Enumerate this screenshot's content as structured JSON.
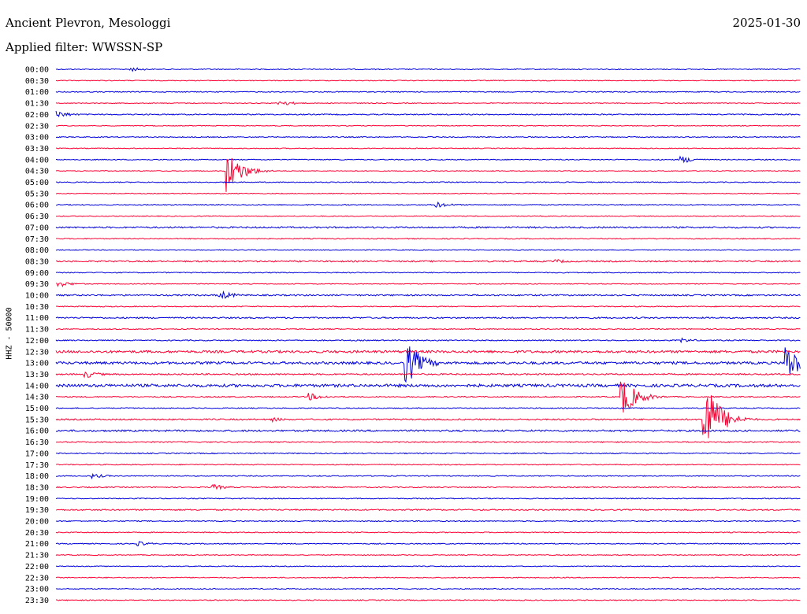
{
  "header": {
    "station": "Ancient Plevron, Mesologgi",
    "date": "2025-01-30",
    "filter": "Applied filter: WWSSN-SP",
    "channel_label": "HHZ - 50000"
  },
  "colors": {
    "even": "#0000dd",
    "odd": "#ff0033"
  },
  "chart_data": {
    "type": "line",
    "title": "Ancient Plevron, Mesologgi",
    "subtitle": "Applied filter: WWSSN-SP",
    "ylabel": "HHZ - 50000",
    "row_labels": [
      "00:00",
      "00:30",
      "01:00",
      "01:30",
      "02:00",
      "02:30",
      "03:00",
      "03:30",
      "04:00",
      "04:30",
      "05:00",
      "05:30",
      "06:00",
      "06:30",
      "07:00",
      "07:30",
      "08:00",
      "08:30",
      "09:00",
      "09:30",
      "10:00",
      "10:30",
      "11:00",
      "11:30",
      "12:00",
      "12:30",
      "13:00",
      "13:30",
      "14:00",
      "14:30",
      "15:00",
      "15:30",
      "16:00",
      "16:30",
      "17:00",
      "17:30",
      "18:00",
      "18:30",
      "19:00",
      "19:30",
      "20:00",
      "20:30",
      "21:00",
      "21:30",
      "22:00",
      "22:30",
      "23:00",
      "23:30"
    ],
    "series": [
      {
        "values": [
          0.6,
          0.5,
          0.6,
          0.5,
          0.7,
          0.5,
          0.6,
          0.5,
          0.6,
          0.5,
          0.6,
          0.5,
          0.6,
          0.5,
          1.0,
          0.6,
          0.5,
          0.9,
          0.6,
          0.5,
          0.9,
          0.6,
          0.9,
          0.6,
          0.7,
          1.5,
          1.6,
          0.9,
          1.8,
          0.7,
          0.6,
          0.9,
          1.1,
          0.7,
          0.7,
          0.6,
          0.6,
          0.7,
          0.6,
          0.8,
          0.6,
          0.6,
          0.6,
          0.5,
          0.5,
          0.6,
          0.6,
          0.6
        ]
      }
    ],
    "events": [
      {
        "row": "00:00",
        "t": 0.1,
        "amp": 3
      },
      {
        "row": "01:30",
        "t": 0.3,
        "amp": 4
      },
      {
        "row": "02:00",
        "t": 0.0,
        "amp": 5
      },
      {
        "row": "04:00",
        "t": 0.84,
        "amp": 5
      },
      {
        "row": "04:30",
        "t": 0.23,
        "amp": 28
      },
      {
        "row": "06:00",
        "t": 0.51,
        "amp": 4
      },
      {
        "row": "08:30",
        "t": 0.67,
        "amp": 3
      },
      {
        "row": "09:30",
        "t": 0.0,
        "amp": 5
      },
      {
        "row": "10:00",
        "t": 0.22,
        "amp": 6
      },
      {
        "row": "12:00",
        "t": 0.84,
        "amp": 3
      },
      {
        "row": "13:00",
        "t": 0.47,
        "amp": 30
      },
      {
        "row": "13:00",
        "t": 0.98,
        "amp": 26
      },
      {
        "row": "13:30",
        "t": 0.04,
        "amp": 5
      },
      {
        "row": "14:30",
        "t": 0.34,
        "amp": 5
      },
      {
        "row": "14:30",
        "t": 0.76,
        "amp": 26
      },
      {
        "row": "15:30",
        "t": 0.87,
        "amp": 60
      },
      {
        "row": "15:30",
        "t": 0.29,
        "amp": 3
      },
      {
        "row": "18:00",
        "t": 0.05,
        "amp": 3
      },
      {
        "row": "18:30",
        "t": 0.21,
        "amp": 4
      },
      {
        "row": "21:00",
        "t": 0.11,
        "amp": 3
      }
    ]
  }
}
